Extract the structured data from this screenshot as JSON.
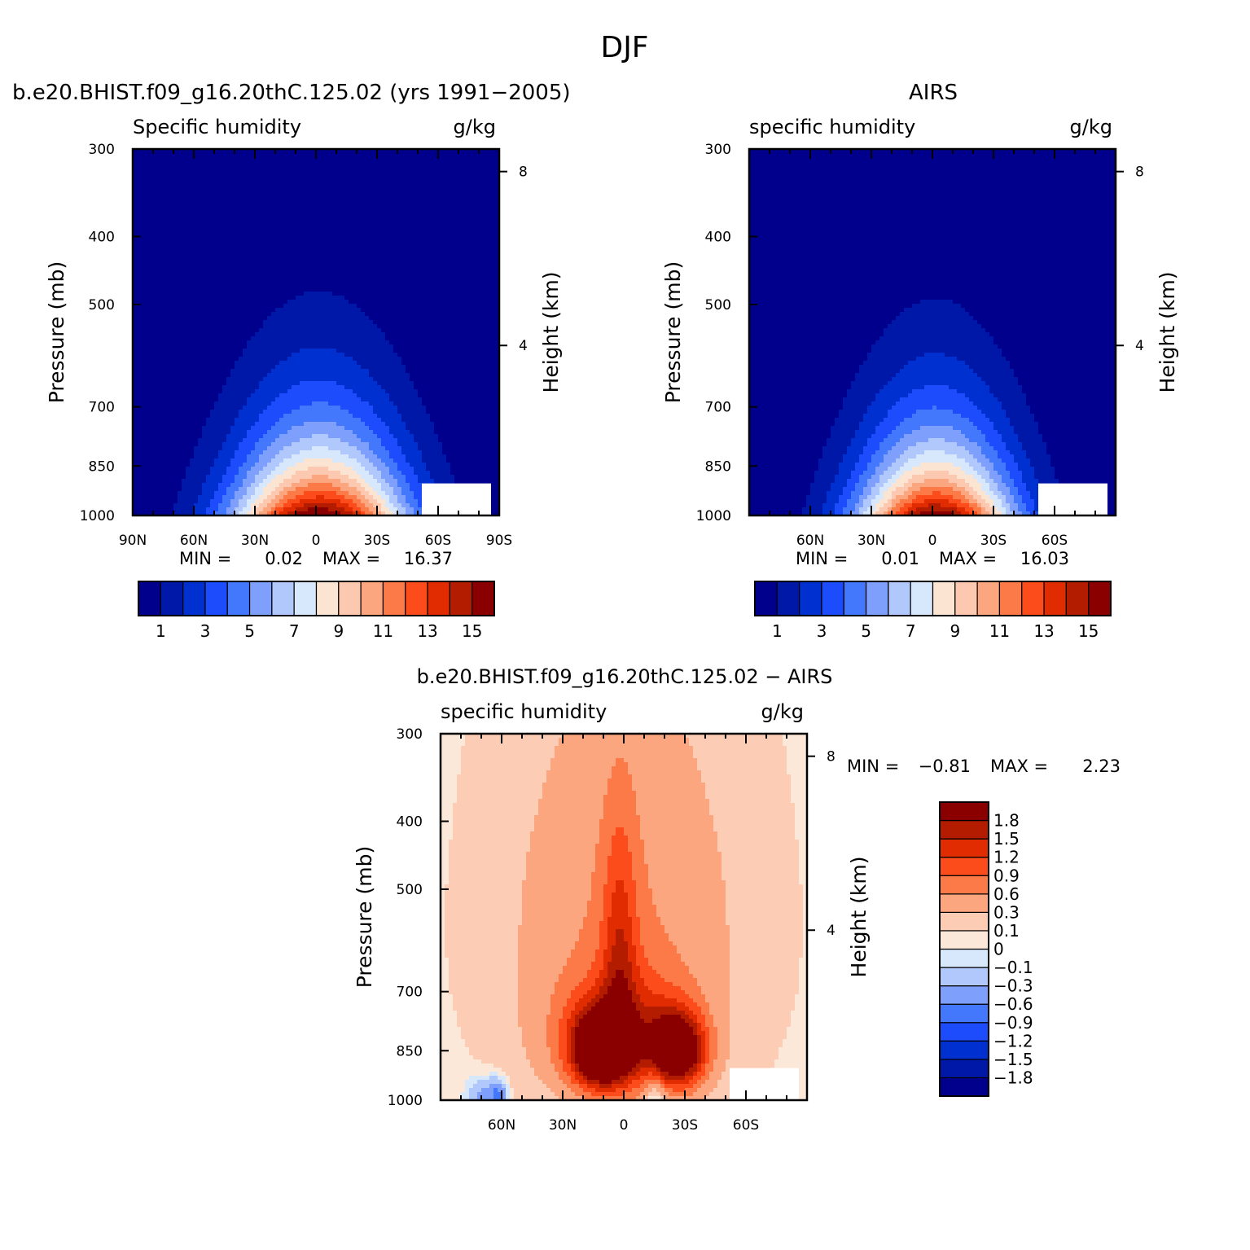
{
  "figure": {
    "title": "DJF"
  },
  "chart_data": [
    {
      "type": "contour",
      "title": "b.e20.BHIST.f09_g16.20thC.125.02 (yrs 1991−2005)",
      "left_label": "Specific humidity",
      "right_label": "g/kg",
      "xlabel": "",
      "ylabel": "Pressure (mb)",
      "y2label": "Height (km)",
      "x_ticks": [
        "90N",
        "60N",
        "30N",
        "0",
        "30S",
        "60S",
        "90S"
      ],
      "y_ticks": [
        300,
        400,
        500,
        700,
        850,
        1000
      ],
      "y2_ticks": [
        8,
        4
      ],
      "xlim": [
        90,
        -90
      ],
      "ylim": [
        1000,
        300
      ],
      "y_scale": "log",
      "stats": {
        "min_label": "MIN =",
        "min": "0.02",
        "max_label": "MAX =",
        "max": "16.37"
      },
      "colorbar": {
        "orientation": "horizontal",
        "levels": [
          1,
          2,
          3,
          4,
          5,
          6,
          7,
          8,
          9,
          10,
          11,
          12,
          13,
          14,
          15
        ],
        "labels": [
          "1",
          "3",
          "5",
          "7",
          "9",
          "11",
          "13",
          "15"
        ]
      },
      "field": {
        "peak_value": 16.37,
        "peak_lat": -2,
        "lat_width": 30,
        "scale_height_km": 1.8
      }
    },
    {
      "type": "contour",
      "title": "AIRS",
      "left_label": "specific humidity",
      "right_label": "g/kg",
      "xlabel": "",
      "ylabel": "Pressure (mb)",
      "y2label": "Height (km)",
      "x_ticks": [
        "60N",
        "30N",
        "0",
        "30S",
        "60S"
      ],
      "y_ticks": [
        300,
        400,
        500,
        700,
        850,
        1000
      ],
      "y2_ticks": [
        8,
        4
      ],
      "xlim": [
        90,
        -90
      ],
      "ylim": [
        1000,
        300
      ],
      "y_scale": "log",
      "stats": {
        "min_label": "MIN =",
        "min": "0.01",
        "max_label": "MAX =",
        "max": "16.03"
      },
      "colorbar": {
        "orientation": "horizontal",
        "levels": [
          1,
          2,
          3,
          4,
          5,
          6,
          7,
          8,
          9,
          10,
          11,
          12,
          13,
          14,
          15
        ],
        "labels": [
          "1",
          "3",
          "5",
          "7",
          "9",
          "11",
          "13",
          "15"
        ]
      },
      "field": {
        "peak_value": 16.03,
        "peak_lat": -2,
        "lat_width": 27,
        "scale_height_km": 1.75
      }
    },
    {
      "type": "contour",
      "title": "b.e20.BHIST.f09_g16.20thC.125.02 − AIRS",
      "left_label": "specific humidity",
      "right_label": "g/kg",
      "xlabel": "",
      "ylabel": "Pressure (mb)",
      "y2label": "Height (km)",
      "x_ticks": [
        "60N",
        "30N",
        "0",
        "30S",
        "60S"
      ],
      "y_ticks": [
        300,
        400,
        500,
        700,
        850,
        1000
      ],
      "y2_ticks": [
        8,
        4
      ],
      "xlim": [
        90,
        -90
      ],
      "ylim": [
        1000,
        300
      ],
      "y_scale": "log",
      "stats": {
        "min_label": "MIN =",
        "min": "−0.81",
        "max_label": "MAX =",
        "max": "2.23"
      },
      "colorbar": {
        "orientation": "vertical",
        "levels": [
          -1.8,
          -1.5,
          -1.2,
          -0.9,
          -0.6,
          -0.3,
          -0.1,
          0,
          0.1,
          0.3,
          0.6,
          0.9,
          1.2,
          1.5,
          1.8
        ],
        "labels": [
          "−1.8",
          "−1.5",
          "−1.2",
          "−0.9",
          "−0.6",
          "−0.3",
          "−0.1",
          "0",
          "0.1",
          "0.3",
          "0.6",
          "0.9",
          "1.2",
          "1.5",
          "1.8"
        ]
      },
      "features": [
        {
          "lat": 12,
          "p": 850,
          "amp": 2.2,
          "dlat": 9,
          "dp": 70
        },
        {
          "lat": -27,
          "p": 850,
          "amp": 2.1,
          "dlat": 9,
          "dp": 70
        },
        {
          "lat": 0,
          "p": 820,
          "amp": 1.3,
          "dlat": 22,
          "dp": 110
        },
        {
          "lat": 2,
          "p": 620,
          "amp": 0.85,
          "dlat": 6,
          "dp": 170
        },
        {
          "lat": 0,
          "p": 560,
          "amp": 0.55,
          "dlat": 40,
          "dp": 260
        },
        {
          "lat": 62,
          "p": 985,
          "amp": -0.75,
          "dlat": 3,
          "dp": 35
        },
        {
          "lat": 70,
          "p": 985,
          "amp": -0.4,
          "dlat": 5,
          "dp": 40
        },
        {
          "lat": -15,
          "p": 980,
          "amp": -0.6,
          "dlat": 4,
          "dp": 50
        }
      ]
    }
  ],
  "palette": {
    "humidity": [
      "#00008c",
      "#0018a8",
      "#0030d0",
      "#1c4cfc",
      "#4478fc",
      "#7ea0fc",
      "#b0c8fc",
      "#d8e8fc",
      "#fce4d2",
      "#fcc8b0",
      "#fca680",
      "#fc7a48",
      "#fc4c1c",
      "#e02c00",
      "#b41c00",
      "#8a0000"
    ],
    "difference": [
      "#00008c",
      "#0018a8",
      "#0030d0",
      "#1c4cfc",
      "#4478fc",
      "#7ea0fc",
      "#b0c8fc",
      "#d8e8fc",
      "#fce8d8",
      "#fcccb4",
      "#fca680",
      "#fc7a48",
      "#fc4c1c",
      "#e02c00",
      "#b41c00",
      "#8a0000"
    ]
  }
}
